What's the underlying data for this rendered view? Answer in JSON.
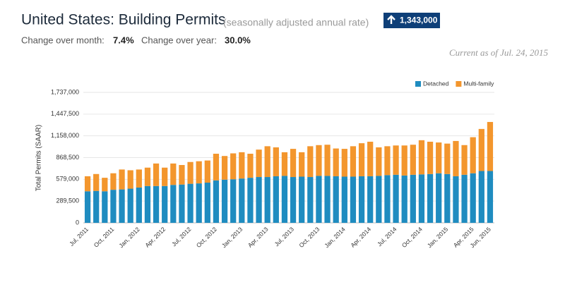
{
  "header": {
    "title": "United States: Building Permits",
    "subtitle": "(seasonally adjusted annual rate)",
    "badge": "1,343,000",
    "mom_label": "Change over month:",
    "mom_value": "7.4%",
    "yoy_label": "Change over year:",
    "yoy_value": "30.0%",
    "as_of": "Current as of Jul. 24, 2015"
  },
  "chart_data": {
    "type": "stacked-bar",
    "y_label": "Total Permits (SAAR)",
    "categories": [
      "Jul, 2011",
      null,
      null,
      "Oct, 2011",
      null,
      null,
      "Jan, 2012",
      null,
      null,
      "Apr, 2012",
      null,
      null,
      "Jul, 2012",
      null,
      null,
      "Oct, 2012",
      null,
      null,
      "Jan, 2013",
      null,
      null,
      "Apr, 2013",
      null,
      null,
      "Jul, 2013",
      null,
      null,
      "Oct, 2013",
      null,
      null,
      "Jan, 2014",
      null,
      null,
      "Apr, 2014",
      null,
      null,
      "Jul, 2014",
      null,
      null,
      "Oct, 2014",
      null,
      null,
      "Jan, 2015",
      null,
      null,
      "Apr, 2015",
      null,
      "Jun, 2015"
    ],
    "series": [
      {
        "name": "Detached",
        "color": "#1f8cc0",
        "values": [
          420000,
          425000,
          420000,
          440000,
          445000,
          455000,
          470000,
          490000,
          490000,
          490000,
          505000,
          510000,
          520000,
          525000,
          535000,
          565000,
          575000,
          580000,
          590000,
          600000,
          610000,
          610000,
          620000,
          625000,
          610000,
          615000,
          610000,
          625000,
          625000,
          620000,
          615000,
          615000,
          620000,
          620000,
          625000,
          635000,
          640000,
          630000,
          640000,
          645000,
          650000,
          660000,
          650000,
          620000,
          640000,
          660000,
          690000,
          690000
        ]
      },
      {
        "name": "Multi-family",
        "color": "#f3962d",
        "values": [
          200000,
          225000,
          180000,
          220000,
          265000,
          245000,
          240000,
          245000,
          300000,
          245000,
          285000,
          260000,
          290000,
          295000,
          295000,
          355000,
          315000,
          345000,
          350000,
          320000,
          365000,
          410000,
          385000,
          315000,
          375000,
          325000,
          410000,
          410000,
          415000,
          370000,
          370000,
          405000,
          440000,
          460000,
          380000,
          385000,
          390000,
          400000,
          400000,
          455000,
          430000,
          410000,
          405000,
          470000,
          395000,
          480000,
          560000,
          653000
        ]
      }
    ],
    "ylim": [
      0,
      1737000
    ],
    "yticks": [
      0,
      {
        "value": 289500,
        "label": "289,500"
      },
      {
        "value": 579000,
        "label": "579,000"
      },
      {
        "value": 868500,
        "label": "868,500"
      },
      {
        "value": 1158000,
        "label": "1,158,000"
      },
      {
        "value": 1447500,
        "label": "1,447,500"
      },
      {
        "value": 1737000,
        "label": "1,737,000"
      }
    ],
    "grid": true,
    "legend": "top-right"
  }
}
